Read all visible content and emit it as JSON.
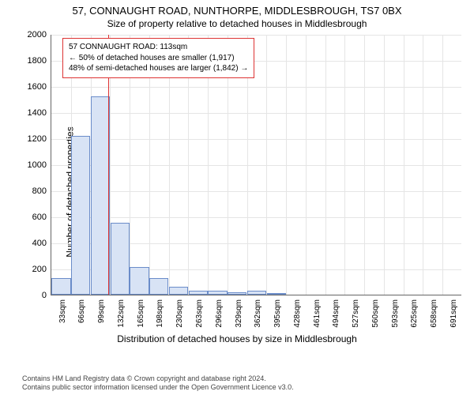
{
  "title": "57, CONNAUGHT ROAD, NUNTHORPE, MIDDLESBROUGH, TS7 0BX",
  "subtitle": "Size of property relative to detached houses in Middlesbrough",
  "y_axis_label": "Number of detached properties",
  "x_axis_label": "Distribution of detached houses by size in Middlesbrough",
  "chart": {
    "type": "histogram",
    "ylim": [
      0,
      2000
    ],
    "ytick_step": 200,
    "bar_fill": "#d8e3f5",
    "bar_stroke": "#6a8cc9",
    "grid_color": "#e5e5e5",
    "background_color": "#ffffff",
    "vline_color": "#d33",
    "vline_x": 113,
    "bins": [
      {
        "label": "33sqm",
        "x": 33,
        "value": 130
      },
      {
        "label": "66sqm",
        "x": 66,
        "value": 1220
      },
      {
        "label": "99sqm",
        "x": 99,
        "value": 1520
      },
      {
        "label": "132sqm",
        "x": 132,
        "value": 550
      },
      {
        "label": "165sqm",
        "x": 165,
        "value": 210
      },
      {
        "label": "198sqm",
        "x": 198,
        "value": 130
      },
      {
        "label": "230sqm",
        "x": 230,
        "value": 60
      },
      {
        "label": "263sqm",
        "x": 263,
        "value": 30
      },
      {
        "label": "296sqm",
        "x": 296,
        "value": 30
      },
      {
        "label": "329sqm",
        "x": 329,
        "value": 20
      },
      {
        "label": "362sqm",
        "x": 362,
        "value": 30
      },
      {
        "label": "395sqm",
        "x": 395,
        "value": 10
      },
      {
        "label": "428sqm",
        "x": 428,
        "value": 0
      },
      {
        "label": "461sqm",
        "x": 461,
        "value": 0
      },
      {
        "label": "494sqm",
        "x": 494,
        "value": 0
      },
      {
        "label": "527sqm",
        "x": 527,
        "value": 0
      },
      {
        "label": "560sqm",
        "x": 560,
        "value": 0
      },
      {
        "label": "593sqm",
        "x": 593,
        "value": 0
      },
      {
        "label": "625sqm",
        "x": 625,
        "value": 0
      },
      {
        "label": "658sqm",
        "x": 658,
        "value": 0
      },
      {
        "label": "691sqm",
        "x": 691,
        "value": 0
      }
    ]
  },
  "annotation": {
    "line1": "57 CONNAUGHT ROAD: 113sqm",
    "line2": "← 50% of detached houses are smaller (1,917)",
    "line3": "48% of semi-detached houses are larger (1,842) →"
  },
  "footer": {
    "line1": "Contains HM Land Registry data © Crown copyright and database right 2024.",
    "line2": "Contains public sector information licensed under the Open Government Licence v3.0."
  }
}
